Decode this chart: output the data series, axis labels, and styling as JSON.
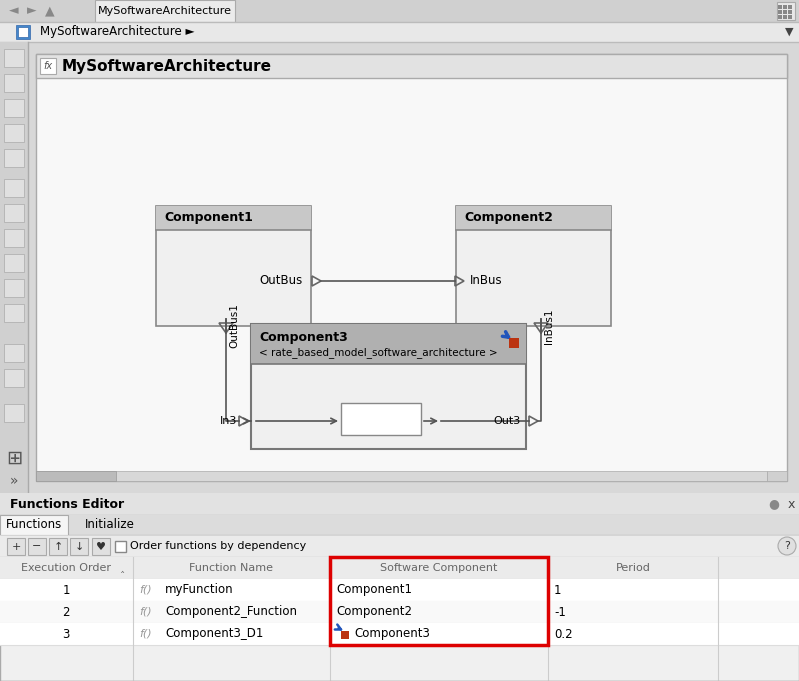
{
  "title_tab": "MySoftwareArchitecture",
  "breadcrumb": "MySoftwareArchitecture",
  "diagram_title": "MySoftwareArchitecture",
  "comp1_label": "Component1",
  "comp2_label": "Component2",
  "comp3_label": "Component3",
  "comp3_sub": "< rate_based_model_software_architecture >",
  "outbus_label": "OutBus",
  "inbus_label": "InBus",
  "outbus1_label": "OutBus1",
  "inbus1_label": "InBus1",
  "in3_label": "In3",
  "out3_label": "Out3",
  "fe_title": "Functions Editor",
  "fe_tab1": "Functions",
  "fe_tab2": "Initialize",
  "fe_checkbox": "Order functions by dependency",
  "col_headers": [
    "Execution Order",
    "Function Name",
    "Software Component",
    "Period"
  ],
  "rows": [
    {
      "order": "1",
      "func": "myFunction",
      "comp": "Component1",
      "period": "1"
    },
    {
      "order": "2",
      "func": "Component2_Function",
      "comp": "Component2",
      "period": "-1"
    },
    {
      "order": "3",
      "func": "Component3_D1",
      "comp": "Component3",
      "period": "0.2"
    }
  ],
  "bg_outer": "#d8d8d8",
  "bg_canvas": "#f5f5f5",
  "bg_titlebar": "#dcdcdc",
  "bg_comp_header": "#c8c8c8",
  "bg_comp_body": "#f0f0f0",
  "bg_comp3_header": "#b0b0b0",
  "bg_toolbar": "#e8e8e8",
  "bg_tab_active": "#f0f0f0",
  "bg_tab_inactive": "#e0e0e0",
  "col_border": "#aaaaaa",
  "text_color": "#000000",
  "text_gray": "#666666",
  "red_border": "#dd0000",
  "blue_icon": "#2255bb",
  "red_icon": "#bb3311",
  "wire_color": "#555555",
  "sidebar_bg": "#d0d0d0"
}
